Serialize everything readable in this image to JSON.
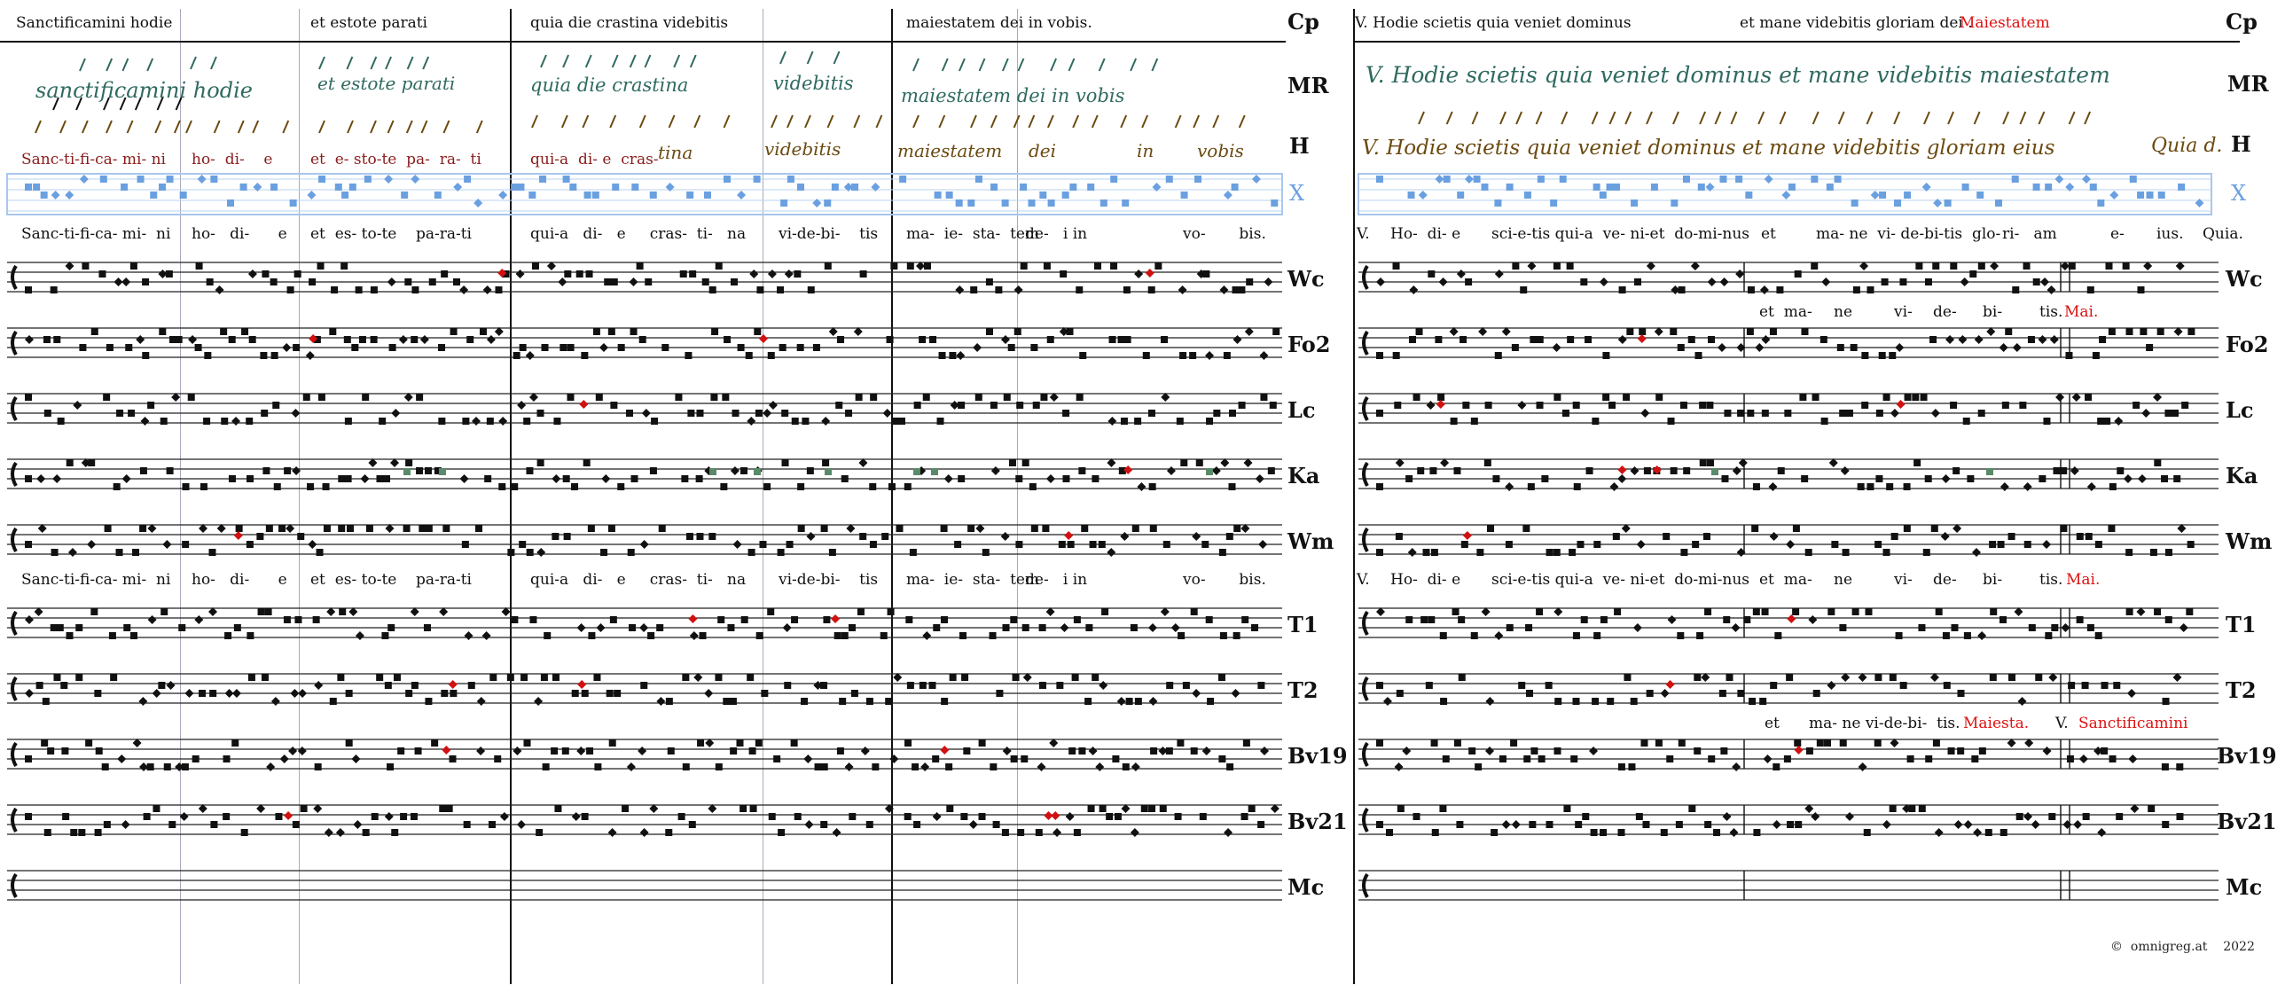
{
  "header": {
    "cp_segments": [
      "Sanctificamini hodie",
      "et estote parati",
      "quia die crastina videbitis",
      "maiestatem dei in vobis."
    ],
    "cp_right_1": "V. Hodie scietis quia veniet dominus",
    "cp_right_2": "et mane videbitis gloriam dei .",
    "cp_right_red": "Maiestatem"
  },
  "labels": [
    "Cp",
    "MR",
    "H",
    "X",
    "Wc",
    "Fo2",
    "Lc",
    "Ka",
    "Wm",
    "T1",
    "T2",
    "Bv19",
    "Bv21",
    "Mc"
  ],
  "manuscripts": {
    "mr_left": [
      "sanctificamini hodie",
      "et estote parati",
      "quia die crastina",
      "videbitis",
      "maiestatem dei in vobis"
    ],
    "mr_right": "V. Hodie scietis quia veniet dominus et mane videbitis maiestatem",
    "h_left": [
      "Sanc-ti-fi-ca- mi- ni",
      "ho-  di-    e",
      "et  e- sto-te  pa-  ra-  ti",
      "qui-a  di- e  cras-",
      "tina",
      "videbitis",
      "maiestatem",
      "dei",
      "in",
      "vobis"
    ],
    "h_right": "V. Hodie scietis quia veniet dominus et mane videbitis gloriam eius",
    "h_right_end": "Quia d."
  },
  "lyrics": {
    "row1_left": [
      "Sanc-ti-fi-ca- mi-  ni",
      "ho-   di-      e",
      "et  es- to-te    pa-ra-ti",
      "qui-a   di-   e     cras-  ti-   na",
      "vi-de-bi-    tis",
      "ma-  ie-  sta-  tem",
      "de-   i in",
      "vo-       bis."
    ],
    "row1_right": [
      "V.",
      "Ho-  di- e",
      "sci-e-tis qui-a  ve- ni-et  do-mi-nus",
      "et",
      "ma- ne  vi- de-bi-tis  glo-",
      "ri-   am",
      "e-",
      "ius.",
      "Quia."
    ],
    "wc_under": [
      "et  ma-",
      "ne",
      "vi-",
      "de-",
      "bi-",
      "tis."
    ],
    "wc_under_red": "Mai.",
    "row2_left": [
      "Sanc-ti-fi-ca- mi-  ni",
      "ho-   di-      e",
      "et  es- to-te    pa-ra-ti",
      "qui-a   di-   e     cras-  ti-   na",
      "vi-de-bi-    tis",
      "ma-  ie-  sta-  tem",
      "de-   i in",
      "vo-       bis."
    ],
    "row2_right": [
      "V.",
      "Ho-  di- e",
      "sci-e-tis qui-a  ve- ni-et  do-mi-nus",
      "et  ma-",
      "ne",
      "vi-",
      "de-",
      "bi-",
      "tis."
    ],
    "row2_right_red": "Mai.",
    "t2_under": [
      "et",
      "ma- ne vi-de-bi-  tis."
    ],
    "t2_under_red1": "Maiesta.",
    "t2_under_v": "V.",
    "t2_under_red2": "Sanctificamini"
  },
  "footer": {
    "copyright": "©  omnigreg.at    2022"
  },
  "colors": {
    "red": "#d11111",
    "green": "#5a8a6a",
    "blue": "#6aa0e0",
    "ink": "#111111",
    "manuscript_green": "#2f6a60",
    "manuscript_gold": "#6b4a10"
  }
}
